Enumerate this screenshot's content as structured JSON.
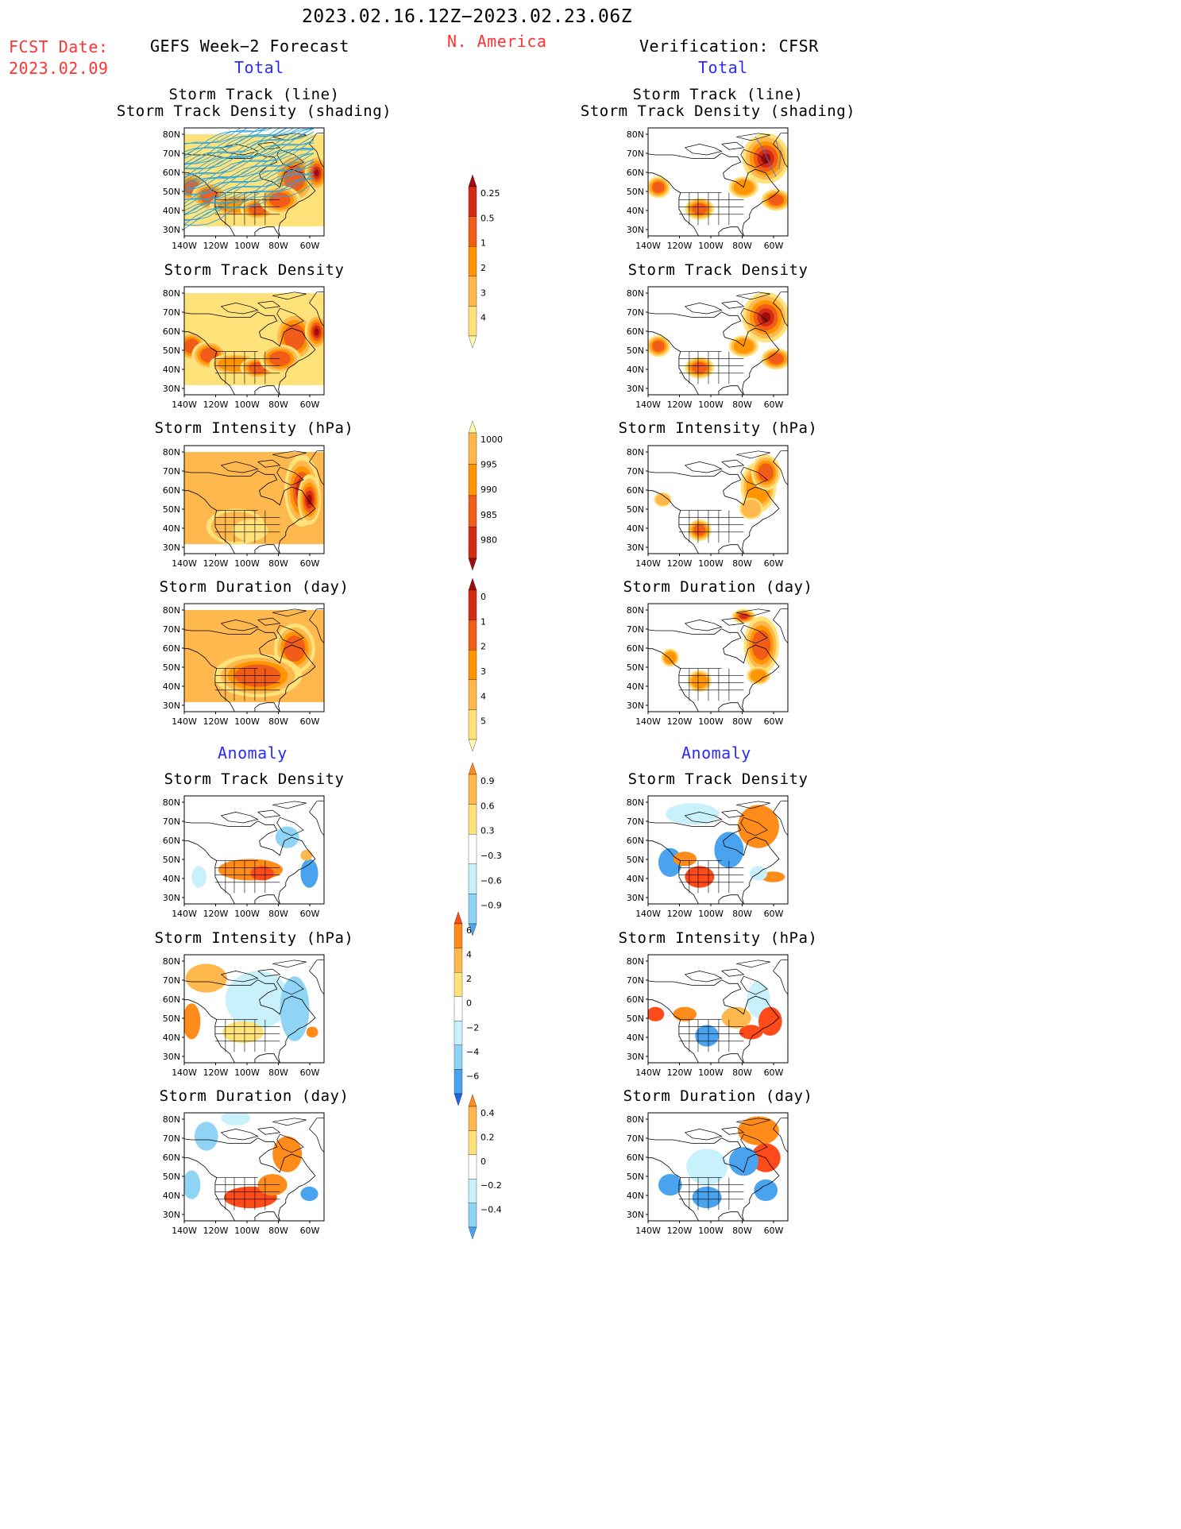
{
  "header": {
    "title": "2023.02.16.12Z−2023.02.23.06Z",
    "region": "N. America",
    "fcst_label": "FCST Date:",
    "fcst_date": "2023.02.09",
    "left_title": "GEFS Week−2 Forecast",
    "right_title": "Verification: CFSR",
    "total_label": "Total",
    "anomaly_label": "Anomaly"
  },
  "panels": {
    "track_line_1": "Storm Track (line)",
    "track_line_2": "Storm Track Density (shading)",
    "density": "Storm Track Density",
    "intensity": "Storm Intensity (hPa)",
    "duration": "Storm Duration (day)"
  },
  "axes": {
    "lat_ticks": [
      "80N",
      "70N",
      "60N",
      "50N",
      "40N",
      "30N"
    ],
    "lon_ticks": [
      "140W",
      "120W",
      "100W",
      "80W",
      "60W"
    ]
  },
  "colorbars": {
    "density_total": [
      "0.25",
      "0.5",
      "1",
      "2",
      "3",
      "4"
    ],
    "intensity_total": [
      "1000",
      "995",
      "990",
      "985",
      "980"
    ],
    "duration_total": [
      "0",
      "1",
      "2",
      "3",
      "4",
      "5"
    ],
    "density_anom": [
      "0.9",
      "0.6",
      "0.3",
      "−0.3",
      "−0.6",
      "−0.9"
    ],
    "intensity_anom": [
      "6",
      "4",
      "2",
      "0",
      "−2",
      "−4",
      "−6"
    ],
    "duration_anom": [
      "0.4",
      "0.2",
      "0",
      "−0.2",
      "−0.4"
    ]
  },
  "colors": {
    "total_scale": [
      "#fff9b0",
      "#ffe27a",
      "#ffb84d",
      "#ff9500",
      "#f25c19",
      "#d32c14",
      "#a00c0c"
    ],
    "anom_pos": [
      "#ffe27a",
      "#ffb84d",
      "#ff8c1a",
      "#ff4a1a"
    ],
    "anom_neg": [
      "#c9f1fb",
      "#8fd3f5",
      "#4aa3ef",
      "#1f66e5"
    ],
    "track_line": "#29a3e0"
  }
}
